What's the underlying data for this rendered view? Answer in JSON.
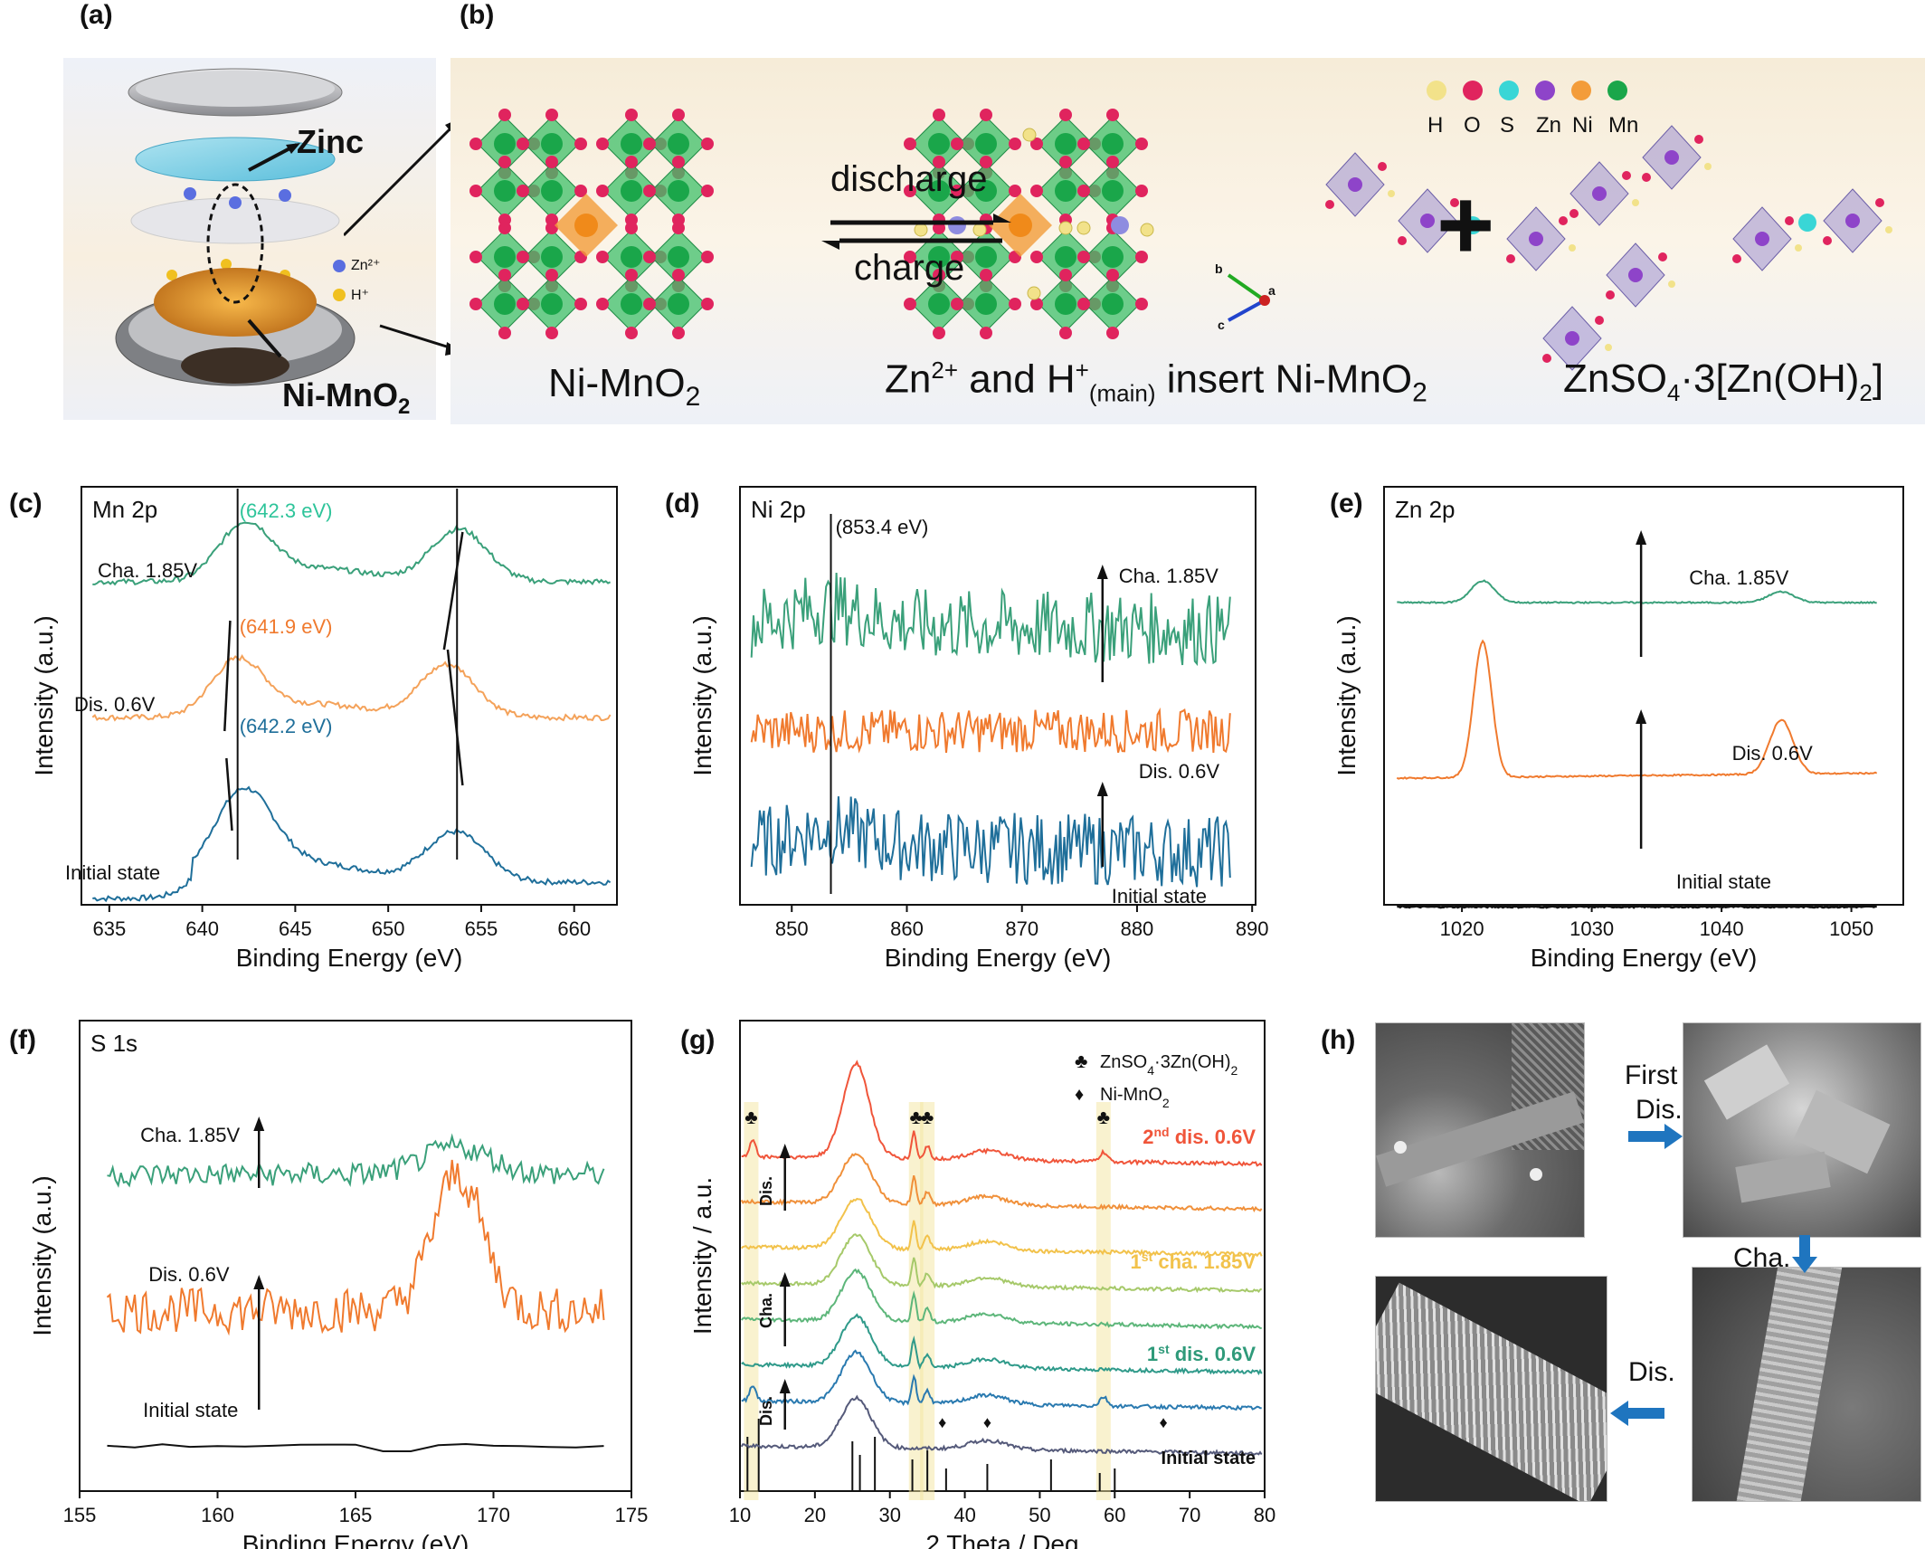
{
  "panels": {
    "a": {
      "label": "(a)",
      "zinc": "Zinc",
      "zn_ion": "Zn²⁺",
      "h_ion": "H⁺",
      "cathode": "Ni-MnO",
      "cathode_sub": "2"
    },
    "b": {
      "label": "(b)",
      "discharge": "discharge",
      "charge": "charge",
      "left_name": "Ni-MnO",
      "left_sub": "2",
      "mid_name": "and",
      "mid_text2": "insert Ni-MnO",
      "mid_sub": "2",
      "mid_main": "(main)",
      "right_name": "ZnSO",
      "legend": [
        "H",
        "O",
        "S",
        "Zn",
        "Ni",
        "Mn"
      ],
      "legend_colors": [
        "#f2e28a",
        "#e0245e",
        "#39d6d6",
        "#8e44c9",
        "#f39c3a",
        "#1aa64a"
      ],
      "axis_a": "a",
      "axis_b": "b",
      "axis_c": "c"
    },
    "h": {
      "label": "(h)",
      "first_dis": "First",
      "first_dis2": "Dis.",
      "cha": "Cha.",
      "dis": "Dis."
    }
  },
  "chart_data": [
    {
      "id": "c",
      "label": "(c)",
      "type": "line",
      "title": "Mn 2p",
      "xlabel": "Binding Energy (eV)",
      "ylabel": "Intensity (a.u.)",
      "xlim": [
        633.5,
        662.3
      ],
      "xticks": [
        635,
        640,
        645,
        650,
        655,
        660
      ],
      "series": [
        {
          "name": "Initial state",
          "color": "#1f6f9a",
          "peaks": [
            642.2,
            653.6
          ],
          "annotation": "(642.2 eV)"
        },
        {
          "name": "Dis. 0.6V",
          "color": "#f4a25a",
          "peaks": [
            641.9,
            653.2
          ],
          "annotation": "(641.9 eV)"
        },
        {
          "name": "Cha. 1.85V",
          "color": "#3aa07a",
          "peaks": [
            642.3,
            653.8
          ],
          "annotation": "(642.3 eV)"
        }
      ],
      "ref_lines": [
        641.9,
        653.7
      ]
    },
    {
      "id": "d",
      "label": "(d)",
      "type": "line",
      "title": "Ni 2p",
      "xlabel": "Binding Energy (eV)",
      "ylabel": "Intensity (a.u.)",
      "xlim": [
        845.5,
        890.3
      ],
      "xticks": [
        850,
        860,
        870,
        880,
        890
      ],
      "series": [
        {
          "name": "Initial state",
          "color": "#1f6f9a"
        },
        {
          "name": "Dis. 0.6V",
          "color": "#f07a2e"
        },
        {
          "name": "Cha. 1.85V",
          "color": "#3aa07a"
        }
      ],
      "annotation": "(853.4 eV)",
      "ref_line": 853.4
    },
    {
      "id": "e",
      "label": "(e)",
      "type": "line",
      "title": "Zn 2p",
      "xlabel": "Binding Energy (eV)",
      "ylabel": "Intensity (a.u.)",
      "xlim": [
        1014,
        1054
      ],
      "xticks": [
        1020,
        1030,
        1040,
        1050
      ],
      "series": [
        {
          "name": "Initial state",
          "color": "#111111"
        },
        {
          "name": "Dis. 0.6V",
          "color": "#f07a2e",
          "peaks": [
            1021.6,
            1044.6
          ]
        },
        {
          "name": "Cha. 1.85V",
          "color": "#3aa07a",
          "peaks": [
            1021.6,
            1044.6
          ]
        }
      ]
    },
    {
      "id": "f",
      "label": "(f)",
      "type": "line",
      "title": "S 1s",
      "xlabel": "Binding Energy (eV)",
      "ylabel": "Intensity (a.u.)",
      "xlim": [
        155,
        175
      ],
      "xticks": [
        155,
        160,
        165,
        170,
        175
      ],
      "series": [
        {
          "name": "Initial state",
          "color": "#111111"
        },
        {
          "name": "Dis. 0.6V",
          "color": "#f07a2e",
          "peaks": [
            168.7
          ]
        },
        {
          "name": "Cha. 1.85V",
          "color": "#3aa07a",
          "peaks": [
            168.7
          ]
        }
      ]
    },
    {
      "id": "g",
      "label": "(g)",
      "type": "line",
      "title": "",
      "xlabel": "2 Theta / Deg",
      "ylabel": "Intensity / a.u.",
      "xlim": [
        10,
        80
      ],
      "xticks": [
        10,
        20,
        30,
        40,
        50,
        60,
        70,
        80
      ],
      "series_colors": [
        "#555a7a",
        "#2a7ab0",
        "#2f9a8a",
        "#5db67a",
        "#a6c96a",
        "#f2c24b",
        "#f0903a",
        "#f0553a"
      ],
      "labels": {
        "initial": "Initial state",
        "first_dis": "1",
        "first_dis_sup": "st",
        "first_dis_tail": " dis. 0.6V",
        "first_cha": "1",
        "first_cha_sup": "st",
        "first_cha_tail": " cha. 1.85V",
        "second_dis": "2",
        "second_dis_sup": "nd",
        "second_dis_tail": " dis. 0.6V",
        "dis": "Dis.",
        "cha": "Cha."
      },
      "legend": [
        "ZnSO",
        "Ni-MnO"
      ],
      "highlight_bands": [
        11.5,
        33.5,
        35.0,
        58.5
      ],
      "mno2_markers": [
        37.0,
        43.0,
        66.5
      ]
    }
  ]
}
